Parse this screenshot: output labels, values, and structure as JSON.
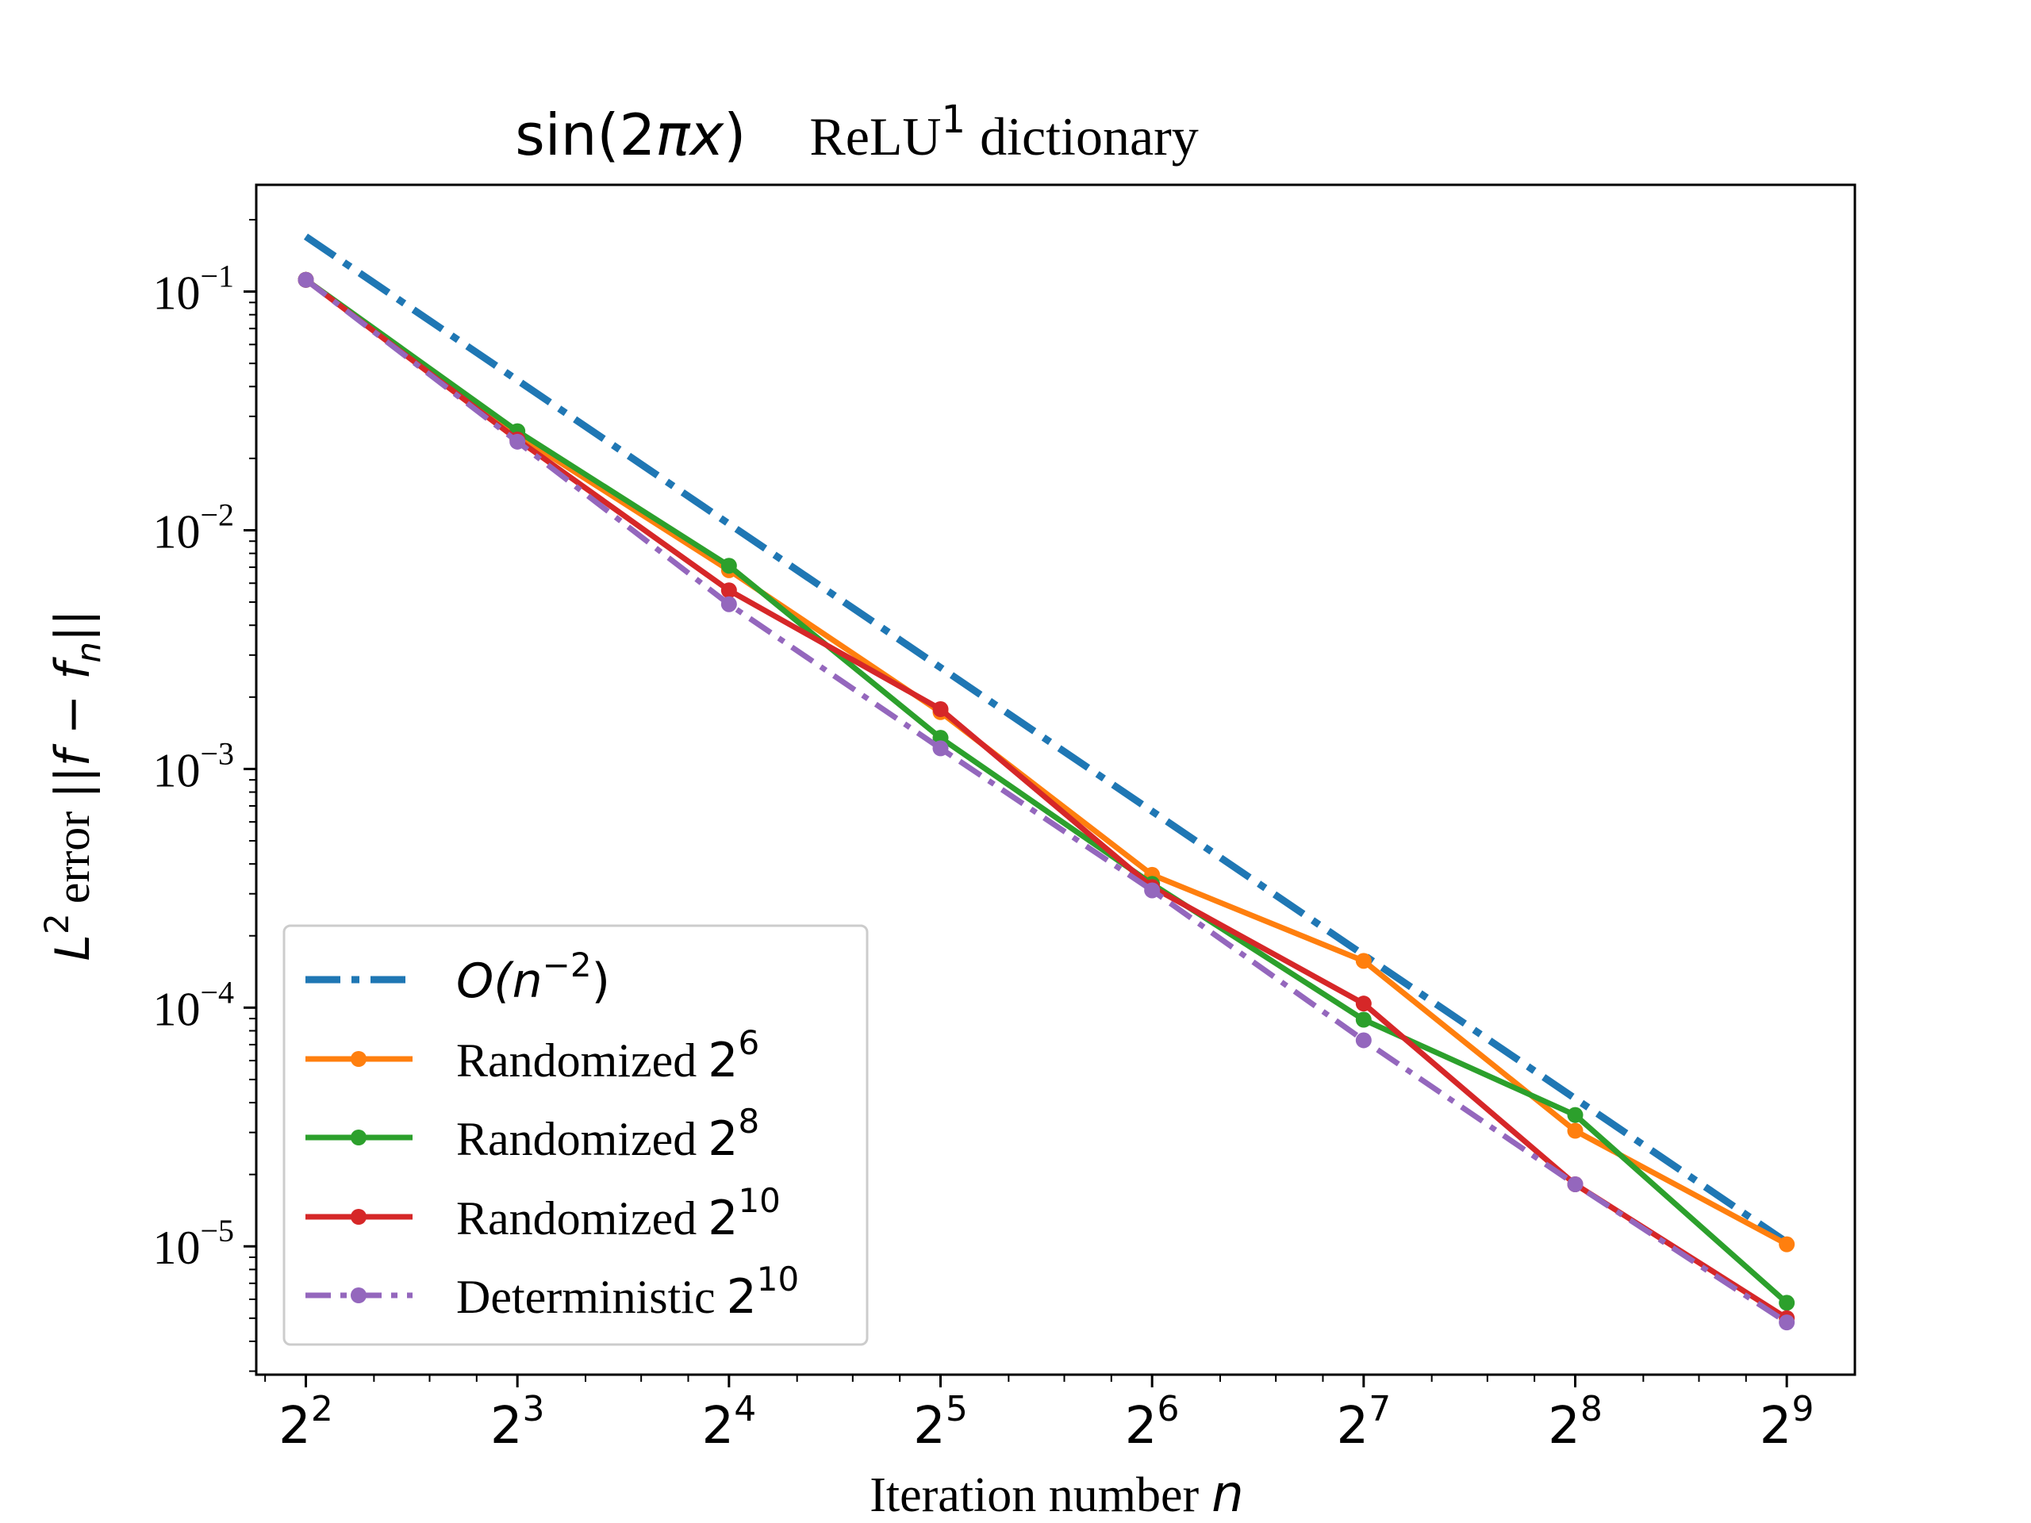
{
  "chart_data": {
    "type": "line",
    "title": {
      "expr": {
        "prefix": "sin(2",
        "var": "πx",
        "suffix": ")"
      },
      "text": {
        "base": "ReLU",
        "sup": "1",
        "rest": "dictionary"
      }
    },
    "xlabel": {
      "text": "Iteration number",
      "var": "n"
    },
    "ylabel": {
      "base": "L",
      "sup": "2",
      "rest": "error",
      "norm": "||f − f",
      "sub": "n",
      "close": "||"
    },
    "x_scale": "log2",
    "y_scale": "log10",
    "xlim": [
      3.4,
      640
    ],
    "ylim": [
      2.9e-06,
      0.28
    ],
    "x_ticks": [
      {
        "value": 4,
        "base": "2",
        "exp": "2"
      },
      {
        "value": 8,
        "base": "2",
        "exp": "3"
      },
      {
        "value": 16,
        "base": "2",
        "exp": "4"
      },
      {
        "value": 32,
        "base": "2",
        "exp": "5"
      },
      {
        "value": 64,
        "base": "2",
        "exp": "6"
      },
      {
        "value": 128,
        "base": "2",
        "exp": "7"
      },
      {
        "value": 256,
        "base": "2",
        "exp": "8"
      },
      {
        "value": 512,
        "base": "2",
        "exp": "9"
      }
    ],
    "y_ticks": [
      {
        "value": 0.1,
        "base": "10",
        "exp": "−1"
      },
      {
        "value": 0.01,
        "base": "10",
        "exp": "−2"
      },
      {
        "value": 0.001,
        "base": "10",
        "exp": "−3"
      },
      {
        "value": 0.0001,
        "base": "10",
        "exp": "−4"
      },
      {
        "value": 1e-05,
        "base": "10",
        "exp": "−5"
      }
    ],
    "x": [
      4,
      8,
      16,
      32,
      64,
      128,
      256,
      512
    ],
    "legend_position": "lower left",
    "series": [
      {
        "id": "ref",
        "label": {
          "text": "O(n",
          "sup": "−2",
          "tail": ")"
        },
        "color": "#1f77b4",
        "style": "dashdot",
        "markers": false,
        "x": [
          4,
          512
        ],
        "values": [
          0.17,
          1.04e-05
        ]
      },
      {
        "id": "r6",
        "label": {
          "text": "Randomized",
          "base": "2",
          "sup": "6"
        },
        "color": "#ff7f0e",
        "style": "solid",
        "markers": true,
        "values": [
          0.112,
          0.025,
          0.0068,
          0.00173,
          0.00036,
          0.000157,
          3.05e-05,
          1.02e-05
        ]
      },
      {
        "id": "r8",
        "label": {
          "text": "Randomized",
          "base": "2",
          "sup": "8"
        },
        "color": "#2ca02c",
        "style": "solid",
        "markers": true,
        "values": [
          0.112,
          0.026,
          0.0071,
          0.00135,
          0.00033,
          8.9e-05,
          3.55e-05,
          5.8e-06
        ]
      },
      {
        "id": "r10",
        "label": {
          "text": "Randomized",
          "base": "2",
          "sup": "10"
        },
        "color": "#d62728",
        "style": "solid",
        "markers": true,
        "values": [
          0.112,
          0.024,
          0.0056,
          0.00178,
          0.00032,
          0.000104,
          1.82e-05,
          5e-06
        ]
      },
      {
        "id": "d10",
        "label": {
          "text": "Deterministic",
          "base": "2",
          "sup": "10"
        },
        "color": "#9467bd",
        "style": "dashdot",
        "markers": true,
        "values": [
          0.112,
          0.0235,
          0.0049,
          0.00122,
          0.00031,
          7.3e-05,
          1.82e-05,
          4.8e-06
        ]
      }
    ]
  }
}
